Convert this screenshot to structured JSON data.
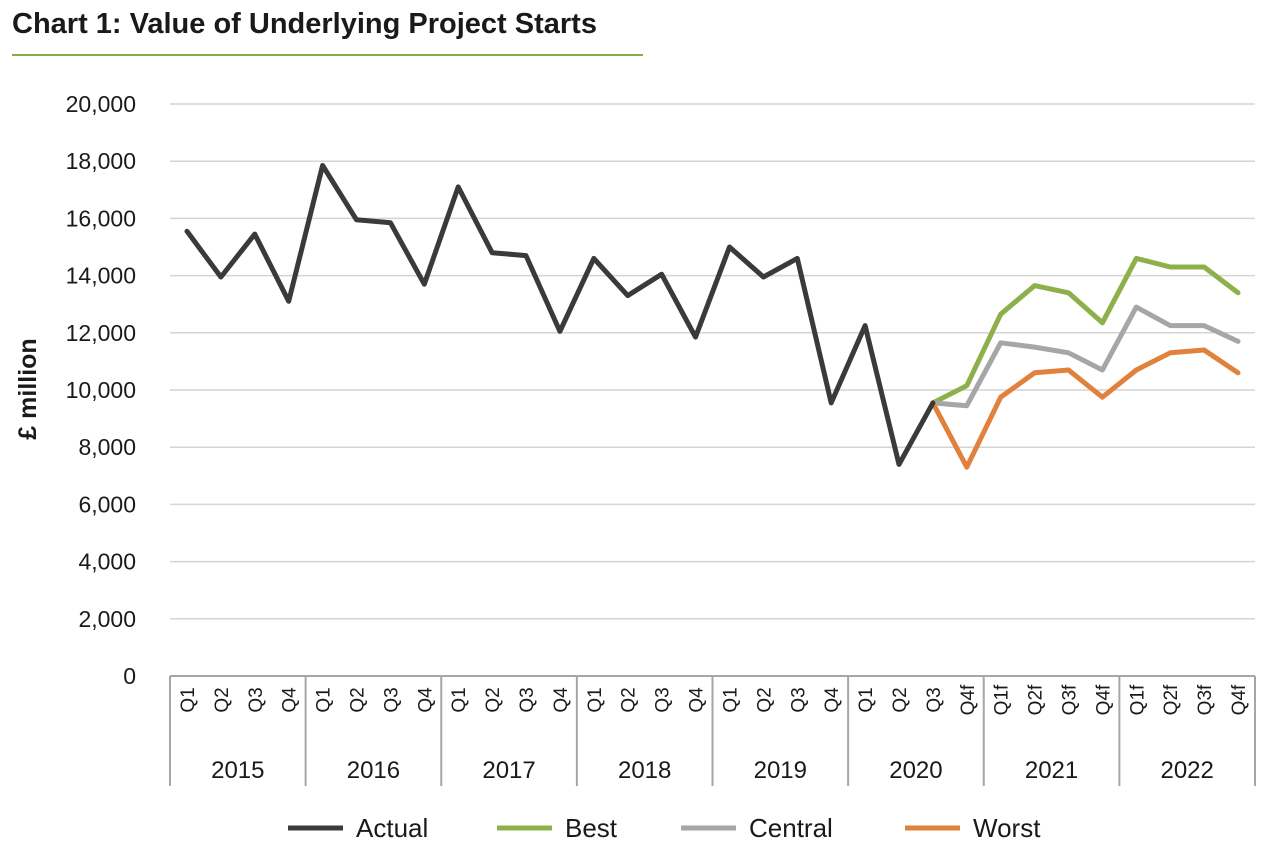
{
  "chart_data": {
    "type": "line",
    "title": "Chart 1: Value of Underlying Project Starts",
    "xlabel": "",
    "ylabel": "£ million",
    "ylim": [
      0,
      20000
    ],
    "yticks": [
      0,
      2000,
      4000,
      6000,
      8000,
      10000,
      12000,
      14000,
      16000,
      18000,
      20000
    ],
    "ytick_labels": [
      "0",
      "2,000",
      "4,000",
      "6,000",
      "8,000",
      "10,000",
      "12,000",
      "14,000",
      "16,000",
      "18,000",
      "20,000"
    ],
    "grid": true,
    "legend_position": "bottom",
    "years": [
      {
        "label": "2015",
        "quarters": [
          "Q1",
          "Q2",
          "Q3",
          "Q4"
        ]
      },
      {
        "label": "2016",
        "quarters": [
          "Q1",
          "Q2",
          "Q3",
          "Q4"
        ]
      },
      {
        "label": "2017",
        "quarters": [
          "Q1",
          "Q2",
          "Q3",
          "Q4"
        ]
      },
      {
        "label": "2018",
        "quarters": [
          "Q1",
          "Q2",
          "Q3",
          "Q4"
        ]
      },
      {
        "label": "2019",
        "quarters": [
          "Q1",
          "Q2",
          "Q3",
          "Q4"
        ]
      },
      {
        "label": "2020",
        "quarters": [
          "Q1",
          "Q2",
          "Q3",
          "Q4f"
        ]
      },
      {
        "label": "2021",
        "quarters": [
          "Q1f",
          "Q2f",
          "Q3f",
          "Q4f"
        ]
      },
      {
        "label": "2022",
        "quarters": [
          "Q1f",
          "Q2f",
          "Q3f",
          "Q4f"
        ]
      }
    ],
    "series": [
      {
        "name": "Actual",
        "color": "#3a3a3a",
        "values": [
          15550,
          13950,
          15450,
          13100,
          17850,
          15950,
          15850,
          13700,
          17100,
          14800,
          14700,
          12050,
          14600,
          13300,
          14050,
          11850,
          15000,
          13950,
          14600,
          9550,
          12250,
          7400,
          9550,
          null,
          null,
          null,
          null,
          null,
          null,
          null,
          null,
          null
        ]
      },
      {
        "name": "Best",
        "color": "#8db04a",
        "values": [
          null,
          null,
          null,
          null,
          null,
          null,
          null,
          null,
          null,
          null,
          null,
          null,
          null,
          null,
          null,
          null,
          null,
          null,
          null,
          null,
          null,
          null,
          9550,
          10150,
          12650,
          13650,
          13400,
          12350,
          14600,
          14300,
          14300,
          13400
        ]
      },
      {
        "name": "Central",
        "color": "#a6a6a6",
        "values": [
          null,
          null,
          null,
          null,
          null,
          null,
          null,
          null,
          null,
          null,
          null,
          null,
          null,
          null,
          null,
          null,
          null,
          null,
          null,
          null,
          null,
          null,
          9550,
          9450,
          11650,
          11500,
          11300,
          10700,
          12900,
          12250,
          12250,
          11700
        ]
      },
      {
        "name": "Worst",
        "color": "#e0823d",
        "values": [
          null,
          null,
          null,
          null,
          null,
          null,
          null,
          null,
          null,
          null,
          null,
          null,
          null,
          null,
          null,
          null,
          null,
          null,
          null,
          null,
          null,
          null,
          9550,
          7300,
          9750,
          10600,
          10700,
          9750,
          10700,
          11300,
          11400,
          10600
        ]
      }
    ]
  }
}
